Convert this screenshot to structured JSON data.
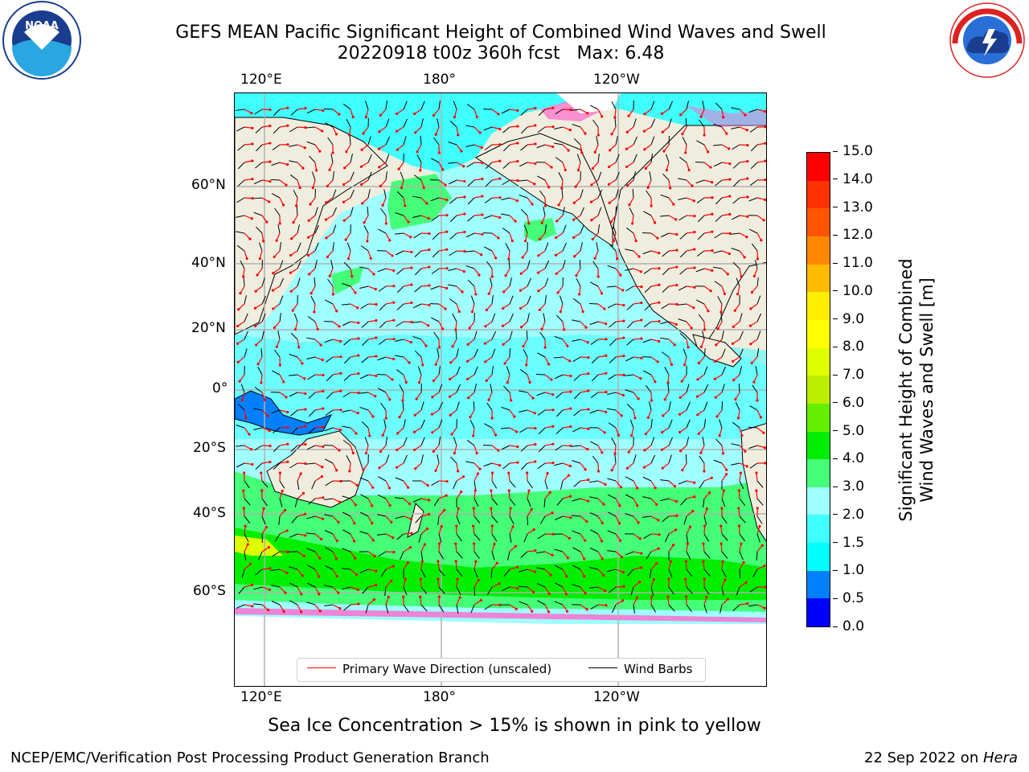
{
  "title_line1": "GEFS MEAN Pacific Significant Height of Combined Wind Waves and Swell",
  "title_line2": "20220918 t00z 360h fcst   Max: 6.48",
  "lon_labels": [
    "120°E",
    "180°",
    "120°W"
  ],
  "lat_labels": [
    "60°N",
    "40°N",
    "20°N",
    "0°",
    "20°S",
    "40°S",
    "60°S"
  ],
  "legend": {
    "wave_direction": "Primary Wave Direction (unscaled)",
    "wind_barbs": "Wind Barbs",
    "wave_color": "#ff0000",
    "barb_color": "#000000"
  },
  "colorbar": {
    "label_line1": "Significant Height of Combined",
    "label_line2": "Wind Waves and Swell [m]",
    "ticks": [
      "0.0",
      "0.5",
      "1.0",
      "1.5",
      "2.0",
      "3.0",
      "4.0",
      "5.0",
      "6.0",
      "7.0",
      "8.0",
      "9.0",
      "10.0",
      "11.0",
      "12.0",
      "13.0",
      "14.0",
      "15.0"
    ],
    "colors": [
      "#0000ff",
      "#0080ff",
      "#00ffff",
      "#40ffff",
      "#a0ffff",
      "#44ff77",
      "#00ee00",
      "#66ee00",
      "#bbee00",
      "#ddff00",
      "#ffff00",
      "#ffee00",
      "#ffbb00",
      "#ff8800",
      "#ff5500",
      "#ff3300",
      "#ff0000"
    ]
  },
  "note": "Sea Ice Concentration > 15% is shown in pink to yellow",
  "footer_left": "NCEP/EMC/Verification Post Processing Product Generation Branch",
  "footer_right_prefix": "22 Sep 2022 on ",
  "footer_right_host": "Hera",
  "noaa_logo_text": "NOAA",
  "nws_logo_text": "NATIONAL WEATHER SERVICE"
}
